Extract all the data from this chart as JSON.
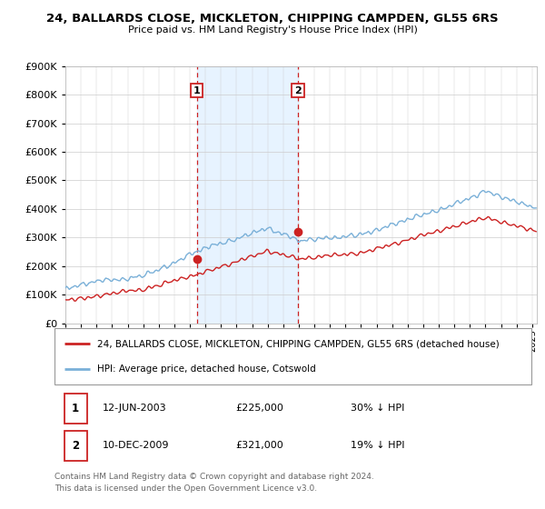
{
  "title": "24, BALLARDS CLOSE, MICKLETON, CHIPPING CAMPDEN, GL55 6RS",
  "subtitle": "Price paid vs. HM Land Registry's House Price Index (HPI)",
  "ylim": [
    0,
    900000
  ],
  "xlim_start": 1995.0,
  "xlim_end": 2025.3,
  "hpi_color": "#7ab0d8",
  "price_color": "#cc2222",
  "vline_color": "#cc2222",
  "shade_color": "#ddeeff",
  "transaction1_date": 2003.44,
  "transaction1_price": 225000,
  "transaction2_date": 2009.94,
  "transaction2_price": 321000,
  "legend_label1": "24, BALLARDS CLOSE, MICKLETON, CHIPPING CAMPDEN, GL55 6RS (detached house)",
  "legend_label2": "HPI: Average price, detached house, Cotswold",
  "annotation1_label": "1",
  "annotation2_label": "2",
  "table_row1": [
    "1",
    "12-JUN-2003",
    "£225,000",
    "30% ↓ HPI"
  ],
  "table_row2": [
    "2",
    "10-DEC-2009",
    "£321,000",
    "19% ↓ HPI"
  ],
  "footnote": "Contains HM Land Registry data © Crown copyright and database right 2024.\nThis data is licensed under the Open Government Licence v3.0.",
  "background_color": "#ffffff",
  "plot_bg_color": "#ffffff",
  "grid_color": "#cccccc"
}
